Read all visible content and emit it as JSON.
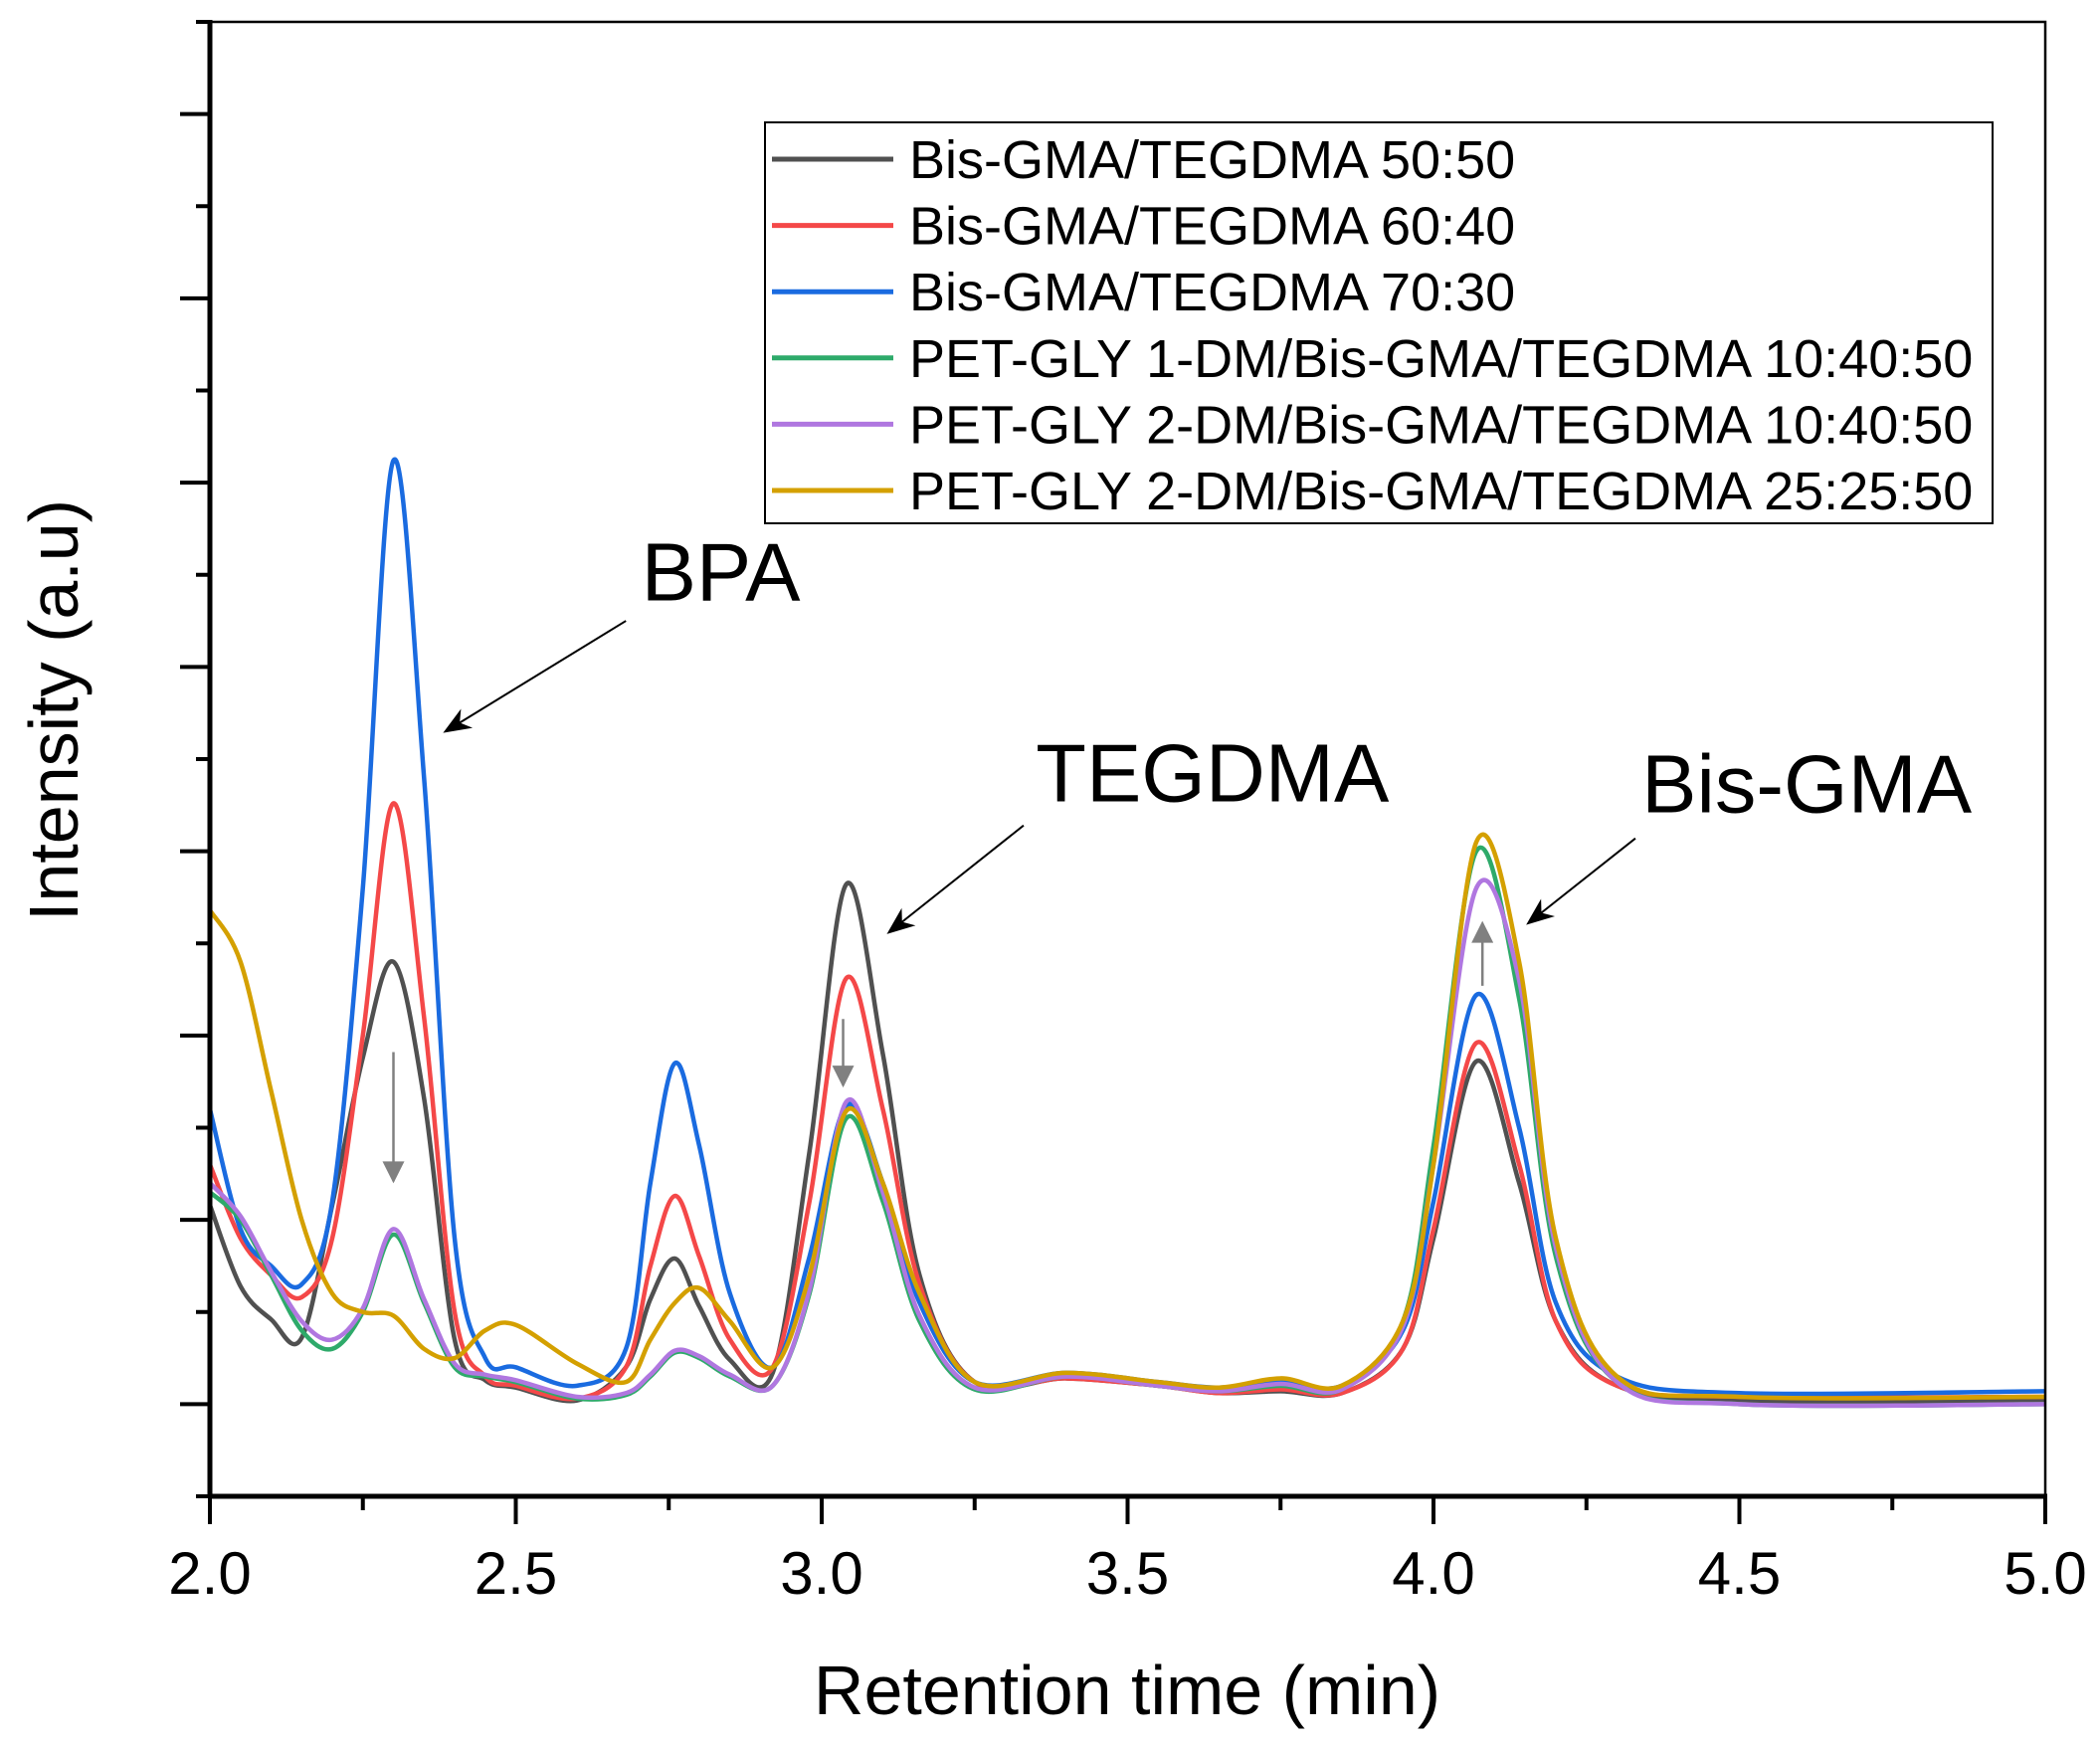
{
  "chart_data": {
    "type": "line",
    "title": "",
    "xlabel": "Retention time (min)",
    "ylabel": "Intensity (a.u)",
    "xlim": [
      2.0,
      5.0
    ],
    "ylim": [
      -0.5,
      7.5
    ],
    "y_units_note": "arbitrary",
    "xticks": [
      2.0,
      2.5,
      3.0,
      3.5,
      4.0,
      4.5,
      5.0
    ],
    "xtick_labels": [
      "2.0",
      "2.5",
      "3.0",
      "3.5",
      "4.0",
      "4.5",
      "5.0"
    ],
    "x_minor_step": 0.25,
    "yticks": [
      0,
      1,
      2,
      3,
      4,
      5,
      6,
      7
    ],
    "y_minor_step": 0.5,
    "ytick_labels_visible": false,
    "grid": false,
    "legend_position": "top-right",
    "x": [
      2.0,
      2.05,
      2.1,
      2.15,
      2.2,
      2.25,
      2.3,
      2.35,
      2.4,
      2.45,
      2.5,
      2.6,
      2.68,
      2.72,
      2.76,
      2.8,
      2.85,
      2.92,
      2.98,
      3.04,
      3.1,
      3.16,
      3.25,
      3.4,
      3.55,
      3.65,
      3.75,
      3.85,
      3.95,
      4.0,
      4.07,
      4.14,
      4.2,
      4.3,
      4.5,
      5.0
    ],
    "series": [
      {
        "name": "Bis-GMA/TEGDMA 50:50",
        "color": "#505050",
        "values": [
          1.08,
          0.64,
          0.46,
          0.36,
          1.08,
          1.88,
          2.4,
          1.66,
          0.35,
          0.13,
          0.09,
          0.02,
          0.2,
          0.57,
          0.79,
          0.53,
          0.24,
          0.17,
          1.37,
          2.82,
          1.9,
          0.7,
          0.12,
          0.14,
          0.1,
          0.06,
          0.07,
          0.06,
          0.3,
          0.9,
          1.86,
          1.2,
          0.45,
          0.1,
          0.02,
          0.02
        ]
      },
      {
        "name": "Bis-GMA/TEGDMA 60:40",
        "color": "#f44848",
        "values": [
          1.3,
          0.9,
          0.7,
          0.58,
          0.9,
          2.0,
          3.26,
          2.1,
          0.5,
          0.15,
          0.1,
          0.03,
          0.2,
          0.75,
          1.13,
          0.8,
          0.35,
          0.2,
          1.1,
          2.31,
          1.6,
          0.65,
          0.12,
          0.14,
          0.1,
          0.06,
          0.08,
          0.06,
          0.3,
          0.95,
          1.96,
          1.3,
          0.45,
          0.1,
          0.04,
          0.04
        ]
      },
      {
        "name": "Bis-GMA/TEGDMA 70:30",
        "color": "#1a6be0",
        "values": [
          1.6,
          0.95,
          0.75,
          0.65,
          1.1,
          2.8,
          5.12,
          3.4,
          0.9,
          0.25,
          0.2,
          0.1,
          0.3,
          1.2,
          1.85,
          1.4,
          0.6,
          0.2,
          0.8,
          1.62,
          1.2,
          0.55,
          0.12,
          0.17,
          0.12,
          0.09,
          0.12,
          0.1,
          0.4,
          1.1,
          2.22,
          1.5,
          0.55,
          0.15,
          0.06,
          0.07
        ]
      },
      {
        "name": "PET-GLY 1-DM/Bis-GMA/TEGDMA 10:40:50",
        "color": "#2eaa6a",
        "values": [
          1.15,
          1.0,
          0.7,
          0.4,
          0.3,
          0.5,
          0.92,
          0.55,
          0.2,
          0.15,
          0.12,
          0.03,
          0.05,
          0.15,
          0.28,
          0.25,
          0.15,
          0.1,
          0.6,
          1.55,
          1.1,
          0.45,
          0.08,
          0.15,
          0.1,
          0.07,
          0.1,
          0.08,
          0.45,
          1.4,
          3.0,
          2.2,
          0.8,
          0.12,
          0.0,
          0.0
        ]
      },
      {
        "name": "PET-GLY 2-DM/Bis-GMA/TEGDMA 10:40:50",
        "color": "#b077e0",
        "values": [
          1.2,
          1.02,
          0.72,
          0.45,
          0.35,
          0.52,
          0.95,
          0.57,
          0.22,
          0.16,
          0.13,
          0.04,
          0.06,
          0.16,
          0.29,
          0.26,
          0.16,
          0.1,
          0.62,
          1.64,
          1.15,
          0.48,
          0.09,
          0.15,
          0.1,
          0.07,
          0.11,
          0.08,
          0.42,
          1.3,
          2.8,
          2.3,
          0.85,
          0.12,
          0.0,
          0.0
        ]
      },
      {
        "name": "PET-GLY 2-DM/Bis-GMA/TEGDMA 25:25:50",
        "color": "#d4a000",
        "values": [
          2.68,
          2.4,
          1.7,
          1.0,
          0.6,
          0.5,
          0.48,
          0.3,
          0.25,
          0.4,
          0.43,
          0.22,
          0.12,
          0.35,
          0.55,
          0.63,
          0.45,
          0.2,
          0.7,
          1.59,
          1.2,
          0.6,
          0.12,
          0.17,
          0.12,
          0.09,
          0.14,
          0.1,
          0.45,
          1.3,
          3.05,
          2.4,
          0.9,
          0.15,
          0.04,
          0.04
        ]
      }
    ],
    "annotations": [
      {
        "text": "BPA",
        "x": 2.705,
        "y": 4.36,
        "arrow_from": [
          2.68,
          4.25
        ],
        "arrow_to": [
          2.385,
          3.65
        ]
      },
      {
        "text": "TEGDMA",
        "x": 3.35,
        "y": 3.27,
        "arrow_from": [
          3.33,
          3.14
        ],
        "arrow_to": [
          3.11,
          2.56
        ]
      },
      {
        "text": "Bis-GMA",
        "x": 4.34,
        "y": 3.21,
        "arrow_from": [
          4.33,
          3.07
        ],
        "arrow_to": [
          4.155,
          2.61
        ]
      }
    ],
    "trend_arrows": [
      {
        "direction": "down",
        "x": 2.3,
        "from": 1.91,
        "to": 1.21
      },
      {
        "direction": "down",
        "x": 3.035,
        "from": 2.09,
        "to": 1.73
      },
      {
        "direction": "up",
        "x": 4.08,
        "from": 2.27,
        "to": 2.61
      }
    ]
  }
}
